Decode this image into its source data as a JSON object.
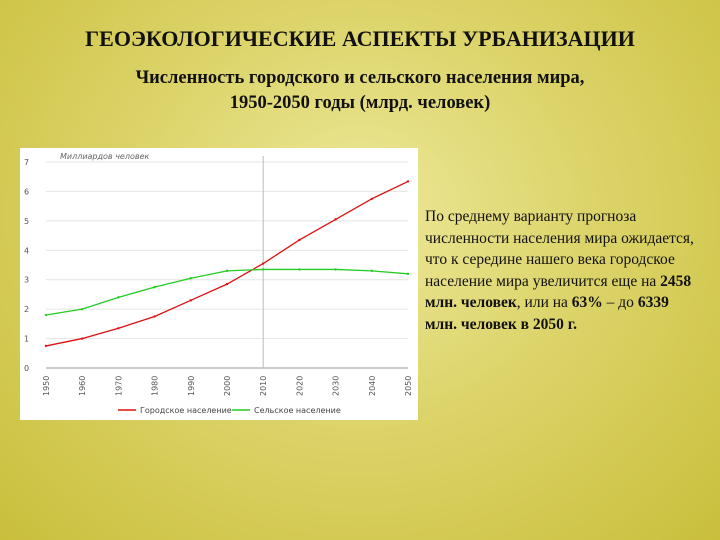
{
  "slide": {
    "title": "ГЕОЭКОЛОГИЧЕСКИЕ АСПЕКТЫ УРБАНИЗАЦИИ",
    "subtitle_line1": "Численность городского и сельского населения мира,",
    "subtitle_line2": "1950-2050 годы (млрд. человек)"
  },
  "side_text": {
    "part1": "По среднему варианту прогноза численности населения мира ожидается, что к середине нашего века городское население мира увеличится еще на ",
    "bold1": "2458 млн. человек",
    "part2": ", или на ",
    "bold2": "63%",
    "part3": " – до ",
    "bold3": "6339 млн. человек в 2050 г."
  },
  "colors": {
    "urban": "#dd1111",
    "rural": "#22cc22",
    "grid": "#e4e4e4",
    "marker": "#bbbbbb",
    "axis": "#999999"
  },
  "chart_data": {
    "type": "line",
    "ylabel": "Миллиардов человек",
    "ylim": [
      0,
      7
    ],
    "y_ticks": [
      0,
      1,
      2,
      3,
      4,
      5,
      6,
      7
    ],
    "x_tick_labels": [
      "1950",
      "1960",
      "1970",
      "1980",
      "1990",
      "2000",
      "2010",
      "2020",
      "2030",
      "2040",
      "2050"
    ],
    "grid": "horizontal",
    "vertical_marker": "2010",
    "legend_position": "bottom",
    "series": [
      {
        "name": "Городское население",
        "color": "#dd1111",
        "values": [
          0.75,
          1.0,
          1.35,
          1.75,
          2.3,
          2.85,
          3.55,
          4.35,
          5.05,
          5.75,
          6.34
        ]
      },
      {
        "name": "Сельское население",
        "color": "#22cc22",
        "values": [
          1.8,
          2.0,
          2.4,
          2.75,
          3.05,
          3.3,
          3.35,
          3.35,
          3.35,
          3.3,
          3.2
        ]
      }
    ]
  }
}
